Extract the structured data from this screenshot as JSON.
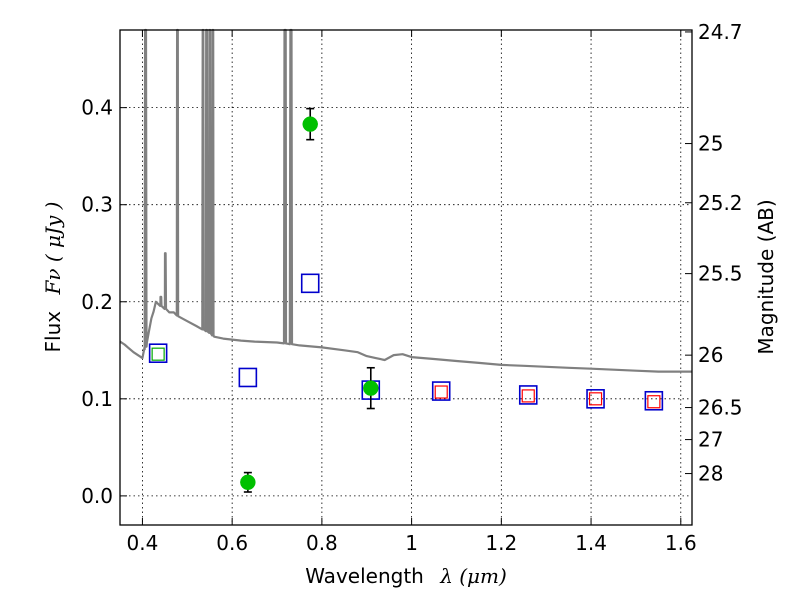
{
  "chart_data": {
    "type": "scatter",
    "xlabel_text": "Wavelength",
    "xlabel_math": "λ (μm)",
    "ylabel_text": "Flux",
    "ylabel_math": "Fν ( μJy )",
    "y2label": "Magnitude (AB)",
    "xlim": [
      0.35,
      1.625
    ],
    "ylim": [
      -0.03,
      0.48
    ],
    "grid": true,
    "xticks": [
      0.4,
      0.6,
      0.8,
      1.0,
      1.2,
      1.4,
      1.6
    ],
    "xtick_labels": [
      "0.4",
      "0.6",
      "0.8",
      "1",
      "1.2",
      "1.4",
      "1.6"
    ],
    "yticks": [
      0.0,
      0.1,
      0.2,
      0.3,
      0.4
    ],
    "ytick_labels": [
      "0.0",
      "0.1",
      "0.2",
      "0.3",
      "0.4"
    ],
    "mag_ticks": [
      {
        "label": "24.7",
        "flux": 0.478
      },
      {
        "label": "25",
        "flux": 0.363
      },
      {
        "label": "25.2",
        "flux": 0.302
      },
      {
        "label": "25.5",
        "flux": 0.229
      },
      {
        "label": "26",
        "flux": 0.145
      },
      {
        "label": "26.5",
        "flux": 0.091
      },
      {
        "label": "27",
        "flux": 0.058
      },
      {
        "label": "28",
        "flux": 0.023
      }
    ],
    "series": [
      {
        "kind": "observed",
        "color": "#00c000",
        "points": [
          {
            "x": 0.635,
            "y": 0.014,
            "err": 0.01
          },
          {
            "x": 0.774,
            "y": 0.383,
            "err": 0.016
          },
          {
            "x": 0.909,
            "y": 0.111,
            "err": 0.021
          }
        ]
      },
      {
        "kind": "model-blue-square",
        "color": "#0000cc",
        "points": [
          {
            "x": 0.435,
            "y": 0.147
          },
          {
            "x": 0.635,
            "y": 0.122
          },
          {
            "x": 0.774,
            "y": 0.219
          },
          {
            "x": 0.909,
            "y": 0.109
          },
          {
            "x": 1.066,
            "y": 0.108
          },
          {
            "x": 1.26,
            "y": 0.104
          },
          {
            "x": 1.41,
            "y": 0.1
          },
          {
            "x": 1.54,
            "y": 0.098
          }
        ]
      },
      {
        "kind": "model-red-square",
        "color": "#ff0000",
        "points": [
          {
            "x": 1.066,
            "y": 0.107
          },
          {
            "x": 1.26,
            "y": 0.103
          },
          {
            "x": 1.41,
            "y": 0.1
          },
          {
            "x": 1.54,
            "y": 0.097
          }
        ]
      },
      {
        "kind": "model-green-square",
        "color": "#00aa00",
        "points": [
          {
            "x": 0.435,
            "y": 0.146
          }
        ]
      },
      {
        "kind": "template-spectrum",
        "color": "#808080",
        "continuum": [
          [
            0.35,
            0.159
          ],
          [
            0.36,
            0.156
          ],
          [
            0.38,
            0.148
          ],
          [
            0.4,
            0.142
          ],
          [
            0.405,
            0.151
          ],
          [
            0.41,
            0.158
          ],
          [
            0.415,
            0.171
          ],
          [
            0.42,
            0.183
          ],
          [
            0.425,
            0.19
          ],
          [
            0.43,
            0.2
          ],
          [
            0.44,
            0.196
          ],
          [
            0.45,
            0.193
          ],
          [
            0.46,
            0.189
          ],
          [
            0.47,
            0.189
          ],
          [
            0.48,
            0.185
          ],
          [
            0.5,
            0.18
          ],
          [
            0.52,
            0.175
          ],
          [
            0.55,
            0.168
          ],
          [
            0.56,
            0.164
          ],
          [
            0.58,
            0.162
          ],
          [
            0.6,
            0.161
          ],
          [
            0.62,
            0.16
          ],
          [
            0.65,
            0.159
          ],
          [
            0.7,
            0.158
          ],
          [
            0.72,
            0.157
          ],
          [
            0.75,
            0.155
          ],
          [
            0.8,
            0.153
          ],
          [
            0.85,
            0.15
          ],
          [
            0.88,
            0.148
          ],
          [
            0.9,
            0.144
          ],
          [
            0.92,
            0.142
          ],
          [
            0.94,
            0.14
          ],
          [
            0.96,
            0.145
          ],
          [
            0.98,
            0.146
          ],
          [
            1.0,
            0.143
          ],
          [
            1.05,
            0.141
          ],
          [
            1.1,
            0.139
          ],
          [
            1.15,
            0.137
          ],
          [
            1.2,
            0.135
          ],
          [
            1.25,
            0.134
          ],
          [
            1.3,
            0.133
          ],
          [
            1.35,
            0.132
          ],
          [
            1.4,
            0.131
          ],
          [
            1.45,
            0.13
          ],
          [
            1.5,
            0.129
          ],
          [
            1.55,
            0.128
          ],
          [
            1.6,
            0.128
          ],
          [
            1.625,
            0.128
          ]
        ],
        "emission_lines": [
          {
            "x": 0.407,
            "peak": 0.48,
            "width": 0.004
          },
          {
            "x": 0.441,
            "peak": 0.205,
            "width": 0.003
          },
          {
            "x": 0.451,
            "peak": 0.25,
            "width": 0.003
          },
          {
            "x": 0.478,
            "peak": 0.48,
            "width": 0.003
          },
          {
            "x": 0.535,
            "peak": 0.48,
            "width": 0.003
          },
          {
            "x": 0.543,
            "peak": 0.48,
            "width": 0.003
          },
          {
            "x": 0.55,
            "peak": 0.48,
            "width": 0.003
          },
          {
            "x": 0.557,
            "peak": 0.48,
            "width": 0.003
          },
          {
            "x": 0.718,
            "peak": 0.48,
            "width": 0.005
          },
          {
            "x": 0.731,
            "peak": 0.48,
            "width": 0.005
          }
        ]
      }
    ]
  }
}
